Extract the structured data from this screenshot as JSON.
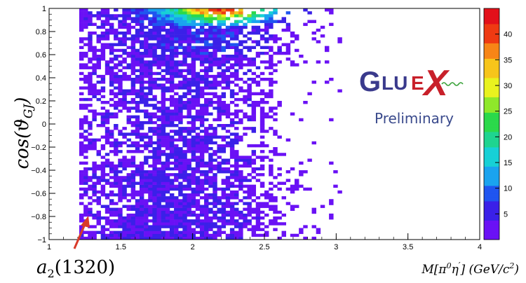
{
  "chart_data": {
    "type": "heatmap",
    "title": "",
    "xlabel": "M[π⁰η′] (GeV/c²)",
    "ylabel": "cos(ϑGJ)",
    "xlim": [
      1,
      4
    ],
    "ylim": [
      -1,
      1
    ],
    "x_ticks": [
      "1",
      "1.5",
      "2",
      "2.5",
      "3",
      "3.5",
      "4"
    ],
    "y_ticks": [
      "−1",
      "−0.8",
      "−0.6",
      "−0.4",
      "−0.2",
      "0",
      "0.2",
      "0.4",
      "0.6",
      "0.8",
      "1"
    ],
    "zlim": [
      0,
      45
    ],
    "z_ticks": [
      "5",
      "10",
      "15",
      "20",
      "25",
      "30",
      "35",
      "40"
    ],
    "colorscale": [
      "#6a11f5",
      "#3a20e8",
      "#1f55f0",
      "#1aa3ef",
      "#17d0d6",
      "#1fd490",
      "#2bd94b",
      "#8fe82a",
      "#e9f21f",
      "#f7c51b",
      "#f78516",
      "#ef3a12",
      "#e3101a"
    ],
    "density": {
      "x_range": [
        1.2,
        3.05
      ],
      "peak_region": {
        "x": [
          1.9,
          2.6
        ],
        "y": [
          0.85,
          1.0
        ],
        "max": 45
      },
      "band_peak_x": 2.2,
      "description_values": "counts concentrated at high cos values near M≈2.2 GeV, sparse elsewhere"
    },
    "annotations": [
      {
        "label_main": "a",
        "label_sub": "2",
        "label_tail": "(1320)",
        "x": 1.27,
        "y": -0.85
      }
    ]
  },
  "logo": {
    "g": "G",
    "lu": "LU",
    "e": "E",
    "x": "X",
    "preliminary": "Preliminary",
    "colors": {
      "dark": "#3a3a8c",
      "red": "#c8202a",
      "green": "#3aa33a"
    }
  },
  "axis_titles": {
    "y_main": "cos(ϑ",
    "y_sub": "GJ",
    "y_tail": ")",
    "x_main": "M[π",
    "x_sup1": "0",
    "x_mid": "η",
    "x_sup2": "′",
    "x_tail": "] (GeV/c",
    "x_sup3": "2",
    "x_end": ")"
  }
}
